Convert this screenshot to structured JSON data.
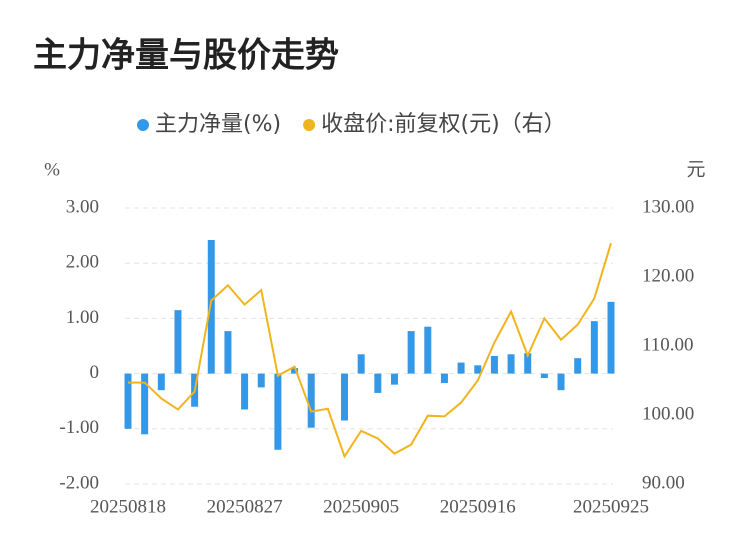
{
  "chart_data": {
    "type": "bar+line",
    "title": "主力净量与股价走势",
    "y_label": "%",
    "y2_label": "元",
    "categories": [
      "20250818",
      null,
      null,
      null,
      null,
      null,
      null,
      "20250827",
      null,
      null,
      null,
      null,
      null,
      null,
      "20250905",
      null,
      null,
      null,
      null,
      null,
      null,
      "20250916",
      null,
      null,
      null,
      null,
      null,
      null,
      null,
      "20250925"
    ],
    "series": [
      {
        "name": "主力净量(%)",
        "type": "bar",
        "color": "#3498e8",
        "values": [
          -1.0,
          -1.1,
          -0.3,
          1.15,
          -0.6,
          2.42,
          0.77,
          -0.65,
          -0.25,
          -1.38,
          0.1,
          -0.98,
          0,
          -0.85,
          0.35,
          -0.35,
          -0.2,
          0.77,
          0.85,
          -0.17,
          0.2,
          0.15,
          0.32,
          0.35,
          0.37,
          -0.08,
          -0.3,
          0.28,
          0.95,
          1.3
        ]
      },
      {
        "name": "收盘价:前复权(元)（右）",
        "type": "line",
        "axis": "y2",
        "color": "#f0b41c",
        "values": [
          104.7,
          104.7,
          102.4,
          100.8,
          103.4,
          116.6,
          118.8,
          116.0,
          118.1,
          105.7,
          107.0,
          100.5,
          100.9,
          94.0,
          97.7,
          96.6,
          94.4,
          95.7,
          99.9,
          99.8,
          101.8,
          105.0,
          110.5,
          115.0,
          108.6,
          114.0,
          110.9,
          113.1,
          116.9,
          124.9
        ]
      }
    ],
    "ylim": [
      -2,
      3
    ],
    "yticks": [
      {
        "value": -2,
        "label": "-2.00"
      },
      {
        "value": -1,
        "label": "-1.00"
      },
      0,
      {
        "value": 1,
        "label": "1.00"
      },
      {
        "value": 2,
        "label": "2.00"
      },
      {
        "value": 3,
        "label": "3.00"
      }
    ],
    "y2lim": [
      90,
      130
    ],
    "y2ticks": [
      {
        "value": 90,
        "label": "90.00"
      },
      {
        "value": 100,
        "label": "100.00"
      },
      {
        "value": 110,
        "label": "110.00"
      },
      {
        "value": 120,
        "label": "120.00"
      },
      {
        "value": 130,
        "label": "130.00"
      }
    ],
    "grid": true,
    "legend": "top"
  }
}
